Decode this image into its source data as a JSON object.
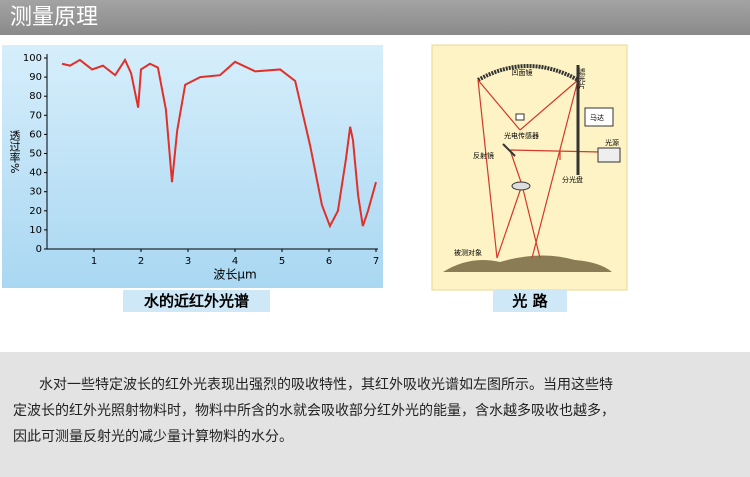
{
  "header": {
    "title": "测量原理"
  },
  "chart_data": {
    "type": "line",
    "ylabel": "透过率%",
    "xlabel": "波长μm",
    "x": [
      0.32,
      0.49,
      0.7,
      0.96,
      1.19,
      1.45,
      1.66,
      1.79,
      1.94,
      2.0,
      2.19,
      2.36,
      2.53,
      2.66,
      2.77,
      2.94,
      3.26,
      3.68,
      4.0,
      4.43,
      4.96,
      5.28,
      5.6,
      5.85,
      6.02,
      6.19,
      6.36,
      6.45,
      6.51,
      6.62,
      6.72,
      6.83,
      7.0
    ],
    "series": [
      {
        "color": "#e0302a",
        "values": [
          97,
          96,
          99,
          94,
          96,
          91,
          99,
          92,
          74,
          94,
          97,
          95,
          73,
          35,
          62,
          86,
          90,
          91,
          98,
          93,
          94,
          88,
          54,
          23,
          12,
          20,
          47,
          64,
          57,
          28,
          12,
          20,
          35
        ]
      }
    ],
    "xlim": [
      0,
      7
    ],
    "ylim": [
      0,
      100
    ],
    "xticks": [
      1,
      2,
      3,
      4,
      5,
      6,
      7
    ],
    "yticks": [
      0,
      10,
      20,
      30,
      40,
      50,
      60,
      70,
      80,
      90,
      100
    ],
    "grid": false
  },
  "spectrum_caption": "水的近红外光谱",
  "diagram": {
    "labels": [
      "凹面镜",
      "滤光片",
      "马达",
      "光电传感器",
      "反射镜",
      "光源",
      "分光盘",
      "被测对象"
    ]
  },
  "diagram_caption": "光 路",
  "paragraph": {
    "lines": [
      "水对一些特定波长的红外光表现出强烈的吸收特性，其红外吸收光谱如左图所示。当用这些特",
      "定波长的红外光照射物料时，物料中所含的水就会吸收部分红外光的能量，含水越多吸收也越多，",
      "因此可测量反射光的减少量计算物料的水分。"
    ]
  }
}
